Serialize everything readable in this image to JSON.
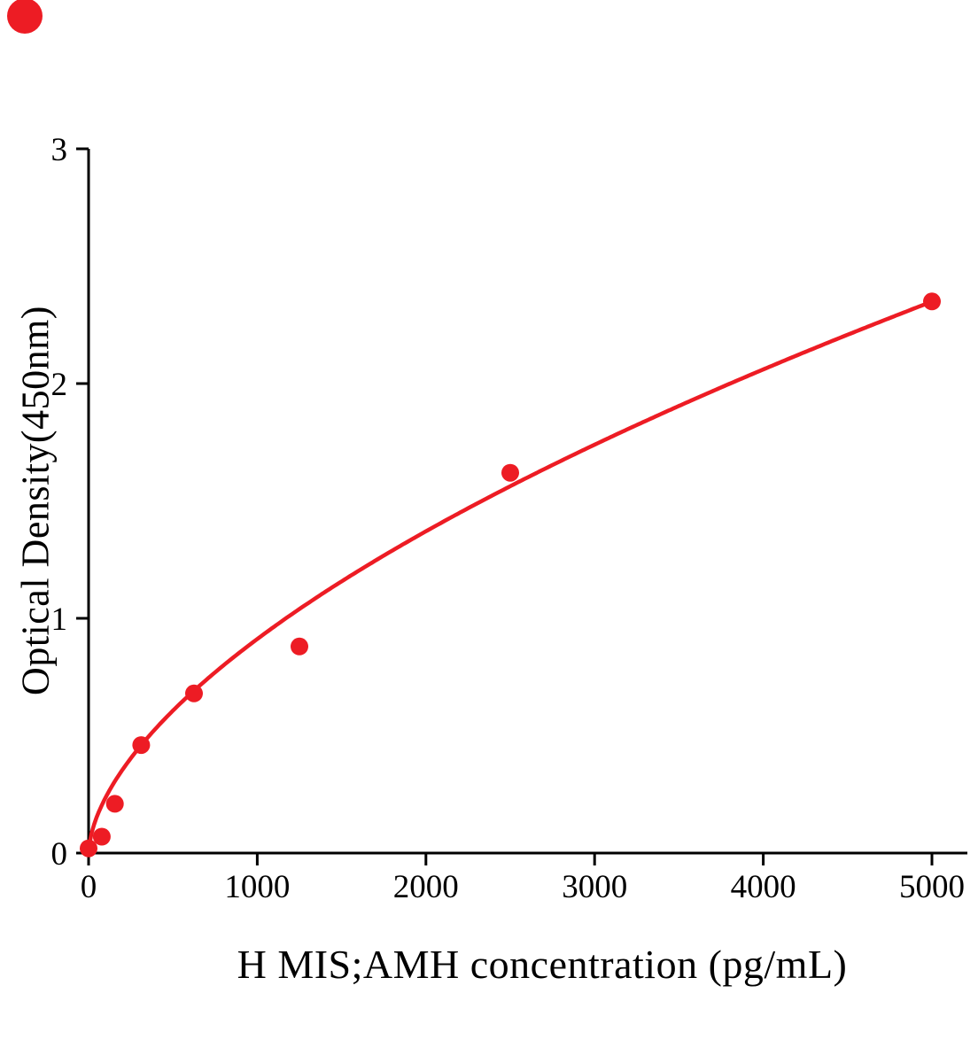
{
  "figure": {
    "background": "#ffffff",
    "corner_mark_color": "#ed1c24"
  },
  "chart_data": {
    "type": "scatter",
    "title": "",
    "xlabel": "H MIS;AMH concentration (pg/mL)",
    "ylabel": "Optical Density(450nm)",
    "xlim": [
      0,
      5000
    ],
    "ylim": [
      0,
      3
    ],
    "x_ticks": [
      0,
      1000,
      2000,
      3000,
      4000,
      5000
    ],
    "y_ticks": [
      0,
      1,
      2,
      3
    ],
    "grid": false,
    "legend": "none",
    "axis_color": "#000000",
    "point_color": "#ed1c24",
    "line_color": "#ed1c24",
    "series": [
      {
        "name": "standard-points",
        "type": "scatter",
        "color": "#ed1c24",
        "x": [
          0,
          78,
          156,
          312,
          625,
          1250,
          2500,
          5000
        ],
        "y": [
          0.02,
          0.07,
          0.21,
          0.46,
          0.68,
          0.88,
          1.62,
          2.35
        ]
      },
      {
        "name": "fit-curve",
        "type": "line",
        "color": "#ed1c24",
        "fit": {
          "model": "power",
          "a": 0.0157,
          "b": 0.588,
          "x_start": 2,
          "x_end": 5000
        }
      }
    ]
  }
}
